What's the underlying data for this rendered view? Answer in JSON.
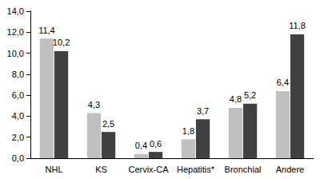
{
  "chart_data": {
    "type": "bar",
    "categories": [
      "NHL",
      "KS",
      "Cervix-CA",
      "Hepatitis*",
      "Bronchial",
      "Andere"
    ],
    "series": [
      {
        "color": "#c0c0c0",
        "values": [
          11.4,
          4.3,
          0.4,
          1.8,
          4.8,
          6.4
        ],
        "value_labels": [
          "11,4",
          "4,3",
          "0,4",
          "1,8",
          "4,8",
          "6,4"
        ]
      },
      {
        "color": "#404040",
        "values": [
          10.2,
          2.5,
          0.6,
          3.7,
          5.2,
          11.8
        ],
        "value_labels": [
          "10,2",
          "2,5",
          "0,6",
          "3,7",
          "5,2",
          "11,8"
        ]
      }
    ],
    "ylim": [
      0,
      14
    ],
    "yticks": [
      {
        "value": 0,
        "label": "0,0"
      },
      {
        "value": 2,
        "label": "2,0"
      },
      {
        "value": 4,
        "label": "4,0"
      },
      {
        "value": 6,
        "label": "6,0"
      },
      {
        "value": 8,
        "label": "8,0"
      },
      {
        "value": 10,
        "label": "10,0"
      },
      {
        "value": 12,
        "label": "12,0"
      },
      {
        "value": 14,
        "label": "14,0"
      }
    ],
    "grid": false,
    "data_labels": true
  }
}
